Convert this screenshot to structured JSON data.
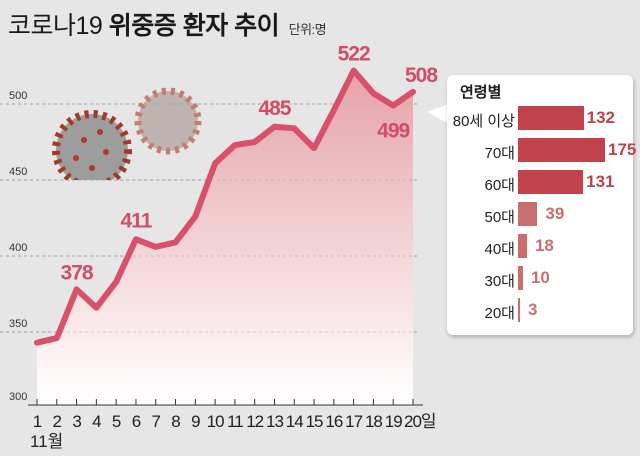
{
  "title": {
    "part1": "코로나19",
    "part2": "위중증 환자 추이",
    "unit": "단위:명"
  },
  "colors": {
    "line": "#d9506a",
    "label": "#d44c66",
    "fill_top": "#e8a9ad",
    "bar_dark": "#c0434b",
    "bar_light": "#c9706f",
    "background": "#e6e6e6"
  },
  "x_axis": {
    "month_label": "11월",
    "day_suffix": "일",
    "ticks": [
      "1",
      "2",
      "3",
      "4",
      "5",
      "6",
      "7",
      "8",
      "9",
      "10",
      "11",
      "12",
      "13",
      "14",
      "15",
      "16",
      "17",
      "18",
      "19",
      "20"
    ]
  },
  "y_axis": {
    "ticks": [
      "300",
      "350",
      "400",
      "450",
      "500"
    ]
  },
  "annotations": [
    {
      "day": 3,
      "text": "378"
    },
    {
      "day": 6,
      "text": "411"
    },
    {
      "day": 13,
      "text": "485"
    },
    {
      "day": 17,
      "text": "522"
    },
    {
      "day": 19,
      "text": "499"
    },
    {
      "day": 20,
      "text": "508"
    }
  ],
  "age_panel": {
    "title": "연령별",
    "rows": [
      {
        "label": "80세 이상",
        "value": "132"
      },
      {
        "label": "70대",
        "value": "175"
      },
      {
        "label": "60대",
        "value": "131"
      },
      {
        "label": "50대",
        "value": "39"
      },
      {
        "label": "40대",
        "value": "18"
      },
      {
        "label": "30대",
        "value": "10"
      },
      {
        "label": "20대",
        "value": "3"
      }
    ]
  },
  "chart_data": [
    {
      "type": "area",
      "title": "코로나19 위중증 환자 추이",
      "subtitle": "단위:명",
      "xlabel": "11월",
      "ylabel": "",
      "x": [
        1,
        2,
        3,
        4,
        5,
        6,
        7,
        8,
        9,
        10,
        11,
        12,
        13,
        14,
        15,
        16,
        17,
        18,
        19,
        20
      ],
      "values": [
        343,
        346,
        378,
        366,
        383,
        411,
        406,
        409,
        426,
        461,
        473,
        475,
        485,
        484,
        471,
        496,
        522,
        507,
        499,
        508
      ],
      "ylim": [
        300,
        530
      ],
      "yticks": [
        300,
        350,
        400,
        450,
        500
      ],
      "grid": true,
      "labeled_points": {
        "3": 378,
        "6": 411,
        "13": 485,
        "17": 522,
        "19": 499,
        "20": 508
      }
    },
    {
      "type": "bar",
      "orientation": "horizontal",
      "title": "연령별",
      "categories": [
        "80세 이상",
        "70대",
        "60대",
        "50대",
        "40대",
        "30대",
        "20대"
      ],
      "values": [
        132,
        175,
        131,
        39,
        18,
        10,
        3
      ]
    }
  ]
}
